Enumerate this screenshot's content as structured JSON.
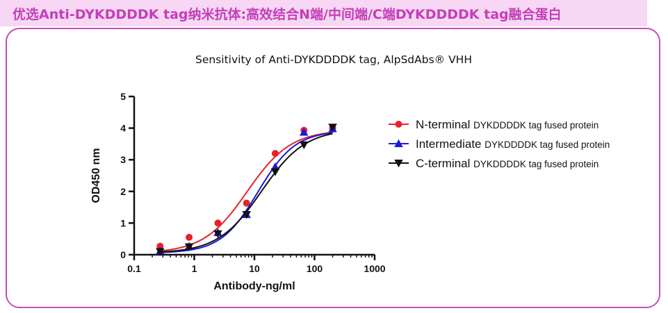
{
  "banner": {
    "title": "优选Anti-DYKDDDDK tag纳米抗体:高效结合N端/中间端/C端DYKDDDDK tag融合蛋白",
    "color": "#c23fb8",
    "background": "#f7d7f3"
  },
  "chart_data": {
    "type": "scatter",
    "title": "Sensitivity of Anti-DYKDDDDK tag, AlpSdAbs® VHH",
    "xlabel": "Antibody-ng/ml",
    "ylabel": "OD450 nm",
    "x_scale": "log",
    "xlim": [
      0.1,
      1000
    ],
    "ylim": [
      0,
      5
    ],
    "x_ticks": [
      "0.1",
      "1",
      "10",
      "100",
      "1000"
    ],
    "y_ticks": [
      "0",
      "1",
      "2",
      "3",
      "4",
      "5"
    ],
    "grid": false,
    "legend_position": "right",
    "fit": "sigmoidal dose-response curve per series",
    "series": [
      {
        "name": "N-terminal",
        "suffix": "DYKDDDDK tag fused protein",
        "marker": "circle",
        "color": "#e8212b",
        "x": [
          0.27,
          0.82,
          2.47,
          7.4,
          22.2,
          66.7,
          200
        ],
        "y": [
          0.27,
          0.55,
          1.0,
          1.63,
          3.2,
          3.93,
          4.0
        ]
      },
      {
        "name": "Intermediate",
        "suffix": "DYKDDDDK tag fused protein",
        "marker": "triangle-up",
        "color": "#1a1adb",
        "x": [
          0.27,
          0.82,
          2.47,
          7.4,
          22.2,
          66.7,
          200
        ],
        "y": [
          0.12,
          0.27,
          0.7,
          1.27,
          2.78,
          3.87,
          3.98
        ]
      },
      {
        "name": "C-terminal",
        "suffix": "DYKDDDDK tag fused protein",
        "marker": "triangle-down",
        "color": "#111111",
        "x": [
          0.27,
          0.82,
          2.47,
          7.4,
          22.2,
          66.7,
          200
        ],
        "y": [
          0.1,
          0.25,
          0.66,
          1.27,
          2.62,
          3.47,
          4.03
        ]
      }
    ]
  }
}
